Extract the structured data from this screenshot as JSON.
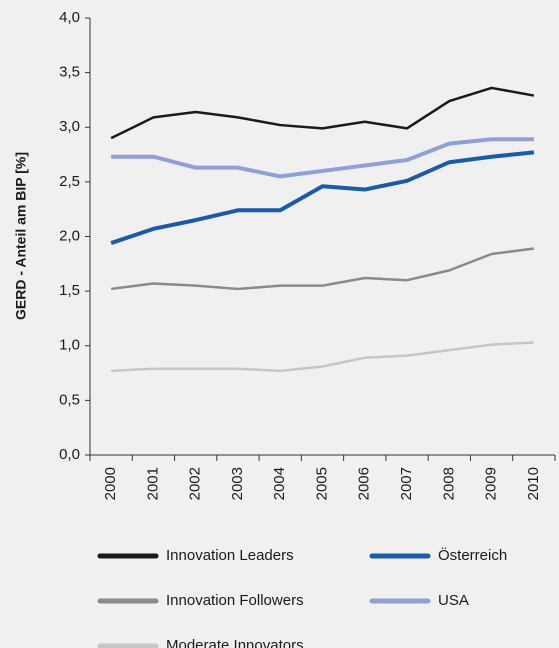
{
  "chart_data": {
    "type": "line",
    "ylabel": "GERD - Anteil am BIP [%]",
    "categories": [
      "2000",
      "2001",
      "2002",
      "2003",
      "2004",
      "2005",
      "2006",
      "2007",
      "2008",
      "2009",
      "2010"
    ],
    "series": [
      {
        "name": "Innovation Leaders",
        "color": "#1a1a1a",
        "line_width": 2.5,
        "values": [
          2.9,
          3.09,
          3.14,
          3.09,
          3.02,
          2.99,
          3.05,
          2.99,
          3.24,
          3.36,
          3.29
        ]
      },
      {
        "name": "Österreich",
        "color": "#1a5aa8",
        "line_width": 4,
        "values": [
          1.94,
          2.07,
          2.15,
          2.24,
          2.24,
          2.46,
          2.43,
          2.51,
          2.68,
          2.73,
          2.77
        ]
      },
      {
        "name": "Innovation Followers",
        "color": "#8a8a8a",
        "line_width": 2.5,
        "values": [
          1.52,
          1.57,
          1.55,
          1.52,
          1.55,
          1.55,
          1.62,
          1.6,
          1.69,
          1.84,
          1.89
        ]
      },
      {
        "name": "USA",
        "color": "#8fa0d8",
        "line_width": 4,
        "values": [
          2.73,
          2.73,
          2.63,
          2.63,
          2.55,
          2.6,
          2.65,
          2.7,
          2.85,
          2.89,
          2.89
        ]
      },
      {
        "name": "Moderate Innovators",
        "color": "#c6c6c6",
        "line_width": 2.5,
        "values": [
          0.77,
          0.79,
          0.79,
          0.79,
          0.77,
          0.81,
          0.89,
          0.91,
          0.96,
          1.01,
          1.03
        ]
      }
    ],
    "ylim": [
      0,
      4
    ],
    "yticks": [
      {
        "value": 0,
        "label": "0,0"
      },
      {
        "value": 0.5,
        "label": "0,5"
      },
      {
        "value": 1,
        "label": "1,0"
      },
      {
        "value": 1.5,
        "label": "1,5"
      },
      {
        "value": 2,
        "label": "2,0"
      },
      {
        "value": 2.5,
        "label": "2,5"
      },
      {
        "value": 3,
        "label": "3,0"
      },
      {
        "value": 3.5,
        "label": "3,5"
      },
      {
        "value": 4,
        "label": "4,0"
      }
    ],
    "grid": false
  }
}
